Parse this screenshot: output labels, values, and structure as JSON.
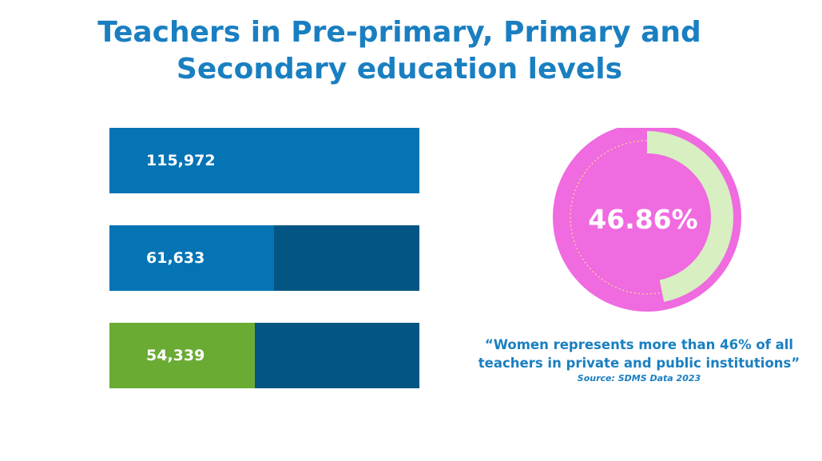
{
  "title": "Teachers in Pre-primary, Primary and Secondary education levels",
  "colors": {
    "title": "#1a7fc1",
    "bar_blue": "#0574b5",
    "bar_dark": "#035683",
    "bar_green": "#6aab34",
    "ring_pink": "#f06ae0",
    "ring_arc": "#d7efc1"
  },
  "chart_data": [
    {
      "type": "bar",
      "orientation": "horizontal",
      "scale_max": 115972,
      "bars": [
        {
          "value": 115972,
          "label": "115,972",
          "color": "#0574b5"
        },
        {
          "value": 61633,
          "label": "61,633",
          "color": "#0574b5"
        },
        {
          "value": 54339,
          "label": "54,339",
          "color": "#6aab34"
        }
      ]
    },
    {
      "type": "pie",
      "style": "donut",
      "value_percent": 46.86,
      "label": "46.86%"
    }
  ],
  "quote": "“Women represents more than 46% of all teachers in private and public institutions”",
  "source": "Source: SDMS Data 2023"
}
